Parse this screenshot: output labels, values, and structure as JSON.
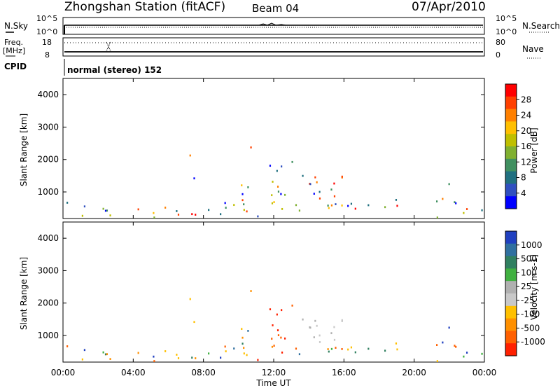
{
  "header": {
    "station": "Zhongshan Station (fitACF)",
    "beam": "Beam 04",
    "date": "07/Apr/2010"
  },
  "ops": {
    "nsky_label": "N.Sky",
    "nsky_ticks": [
      "10^5",
      "10^0"
    ],
    "nsearch_label": "N.Search",
    "nsearch_ticks": [
      "10^5",
      "10^0"
    ],
    "freq_label": "Freq.",
    "freq_unit": "[MHz]",
    "freq_ticks": [
      "18",
      "8"
    ],
    "nave_label": "Nave",
    "nave_ticks": [
      "80",
      "0"
    ],
    "cpid_label": "CPID",
    "cpid_text": "normal (stereo) 152"
  },
  "chart_data": [
    {
      "type": "heatmap",
      "title": "",
      "quantity": "Power",
      "colorbar_label": "Power [dB]",
      "colorbar_ticks": [
        "28",
        "24",
        "20",
        "16",
        "12",
        "8",
        "4"
      ],
      "colorbar_colors": [
        "#ff0000",
        "#ff4000",
        "#ff8000",
        "#ffbf00",
        "#bfbf00",
        "#80b030",
        "#409060",
        "#207080",
        "#3050c0",
        "#0000ff"
      ],
      "ylabel": "Slant Range [km]",
      "yticks": [
        "4000",
        "3000",
        "2000",
        "1000"
      ],
      "ylim": [
        180,
        4500
      ],
      "xlim_hours": [
        0,
        24
      ],
      "xticks": [
        "00:00",
        "04:00",
        "08:00",
        "12:00",
        "16:00",
        "20:00",
        "00:00"
      ]
    },
    {
      "type": "heatmap",
      "title": "",
      "quantity": "Velocity",
      "colorbar_label": "Velocity [m s-1]",
      "colorbar_ticks": [
        "1000",
        "500",
        "100",
        "25",
        "-25",
        "-100",
        "-500",
        "-1000"
      ],
      "colorbar_colors": [
        "#2040c0",
        "#3070a0",
        "#308060",
        "#40b040",
        "#b0b0b0",
        "#c8c8c8",
        "#ffc000",
        "#ff9000",
        "#ff6000",
        "#ff2000"
      ],
      "ylabel": "Slant Range [km]",
      "yticks": [
        "4000",
        "3000",
        "2000",
        "1000"
      ],
      "ylim": [
        180,
        4500
      ],
      "xlim_hours": [
        0,
        24
      ],
      "xticks": [
        "00:00",
        "04:00",
        "08:00",
        "12:00",
        "16:00",
        "20:00",
        "00:00"
      ],
      "xlabel": "Time UT"
    }
  ]
}
